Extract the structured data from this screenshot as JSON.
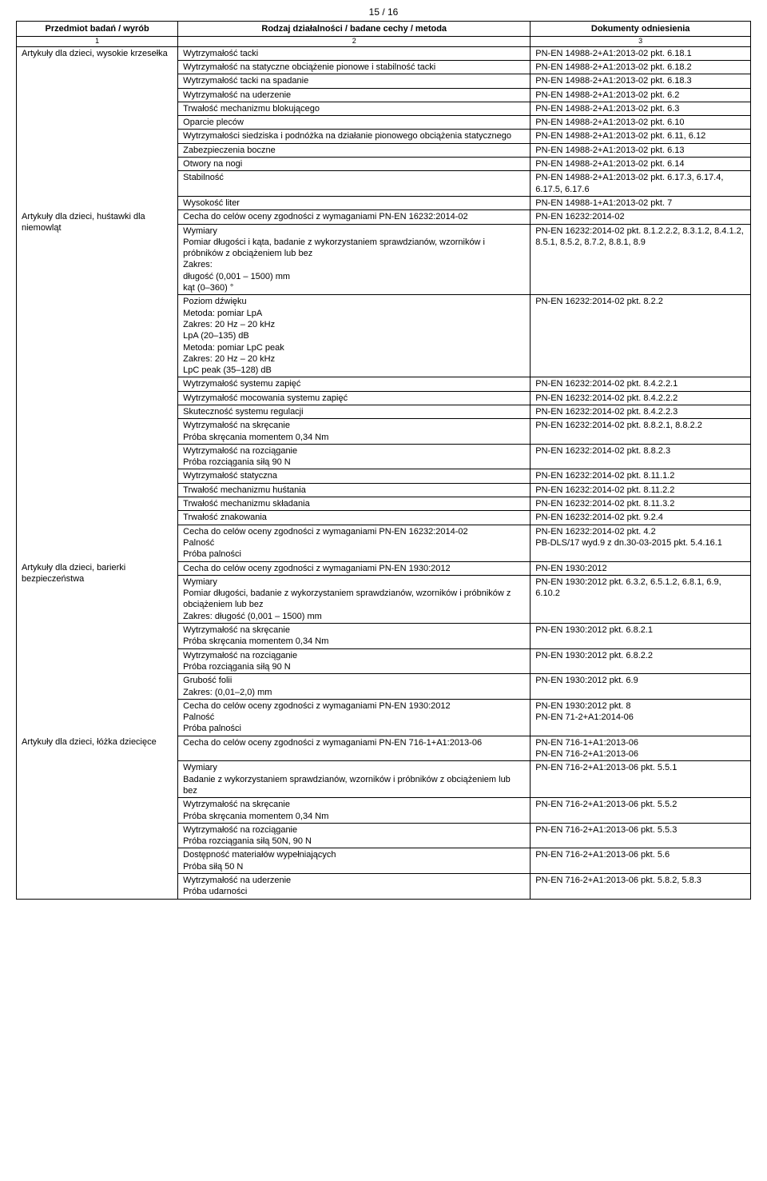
{
  "page_number": "15 / 16",
  "headers": {
    "col1": "Przedmiot badań / wyrób",
    "col2": "Rodzaj działalności / badane cechy / metoda",
    "col3": "Dokumenty odniesienia",
    "n1": "1",
    "n2": "2",
    "n3": "3"
  },
  "groups": [
    {
      "subject": "Artykuły dla dzieci, wysokie krzesełka",
      "rows": [
        {
          "m": "Wytrzymałość tacki",
          "d": "PN-EN 14988-2+A1:2013-02 pkt. 6.18.1"
        },
        {
          "m": "Wytrzymałość na statyczne obciążenie pionowe i stabilność tacki",
          "d": "PN-EN 14988-2+A1:2013-02 pkt. 6.18.2"
        },
        {
          "m": "Wytrzymałość tacki na spadanie",
          "d": "PN-EN 14988-2+A1:2013-02 pkt. 6.18.3"
        },
        {
          "m": "Wytrzymałość na uderzenie",
          "d": "PN-EN 14988-2+A1:2013-02 pkt. 6.2"
        },
        {
          "m": "Trwałość mechanizmu blokującego",
          "d": "PN-EN 14988-2+A1:2013-02 pkt. 6.3"
        },
        {
          "m": "Oparcie pleców",
          "d": "PN-EN 14988-2+A1:2013-02 pkt. 6.10"
        },
        {
          "m": "Wytrzymałości siedziska i podnóżka na działanie pionowego obciążenia statycznego",
          "d": "PN-EN 14988-2+A1:2013-02 pkt. 6.11, 6.12"
        },
        {
          "m": "Zabezpieczenia boczne",
          "d": "PN-EN 14988-2+A1:2013-02 pkt. 6.13"
        },
        {
          "m": "Otwory na nogi",
          "d": "PN-EN 14988-2+A1:2013-02 pkt. 6.14"
        },
        {
          "m": "Stabilność",
          "d": "PN-EN 14988-2+A1:2013-02 pkt. 6.17.3, 6.17.4, 6.17.5, 6.17.6"
        },
        {
          "m": "Wysokość liter",
          "d": "PN-EN 14988-1+A1:2013-02 pkt. 7"
        }
      ]
    },
    {
      "subject": "Artykuły dla dzieci, huśtawki dla niemowląt",
      "rows": [
        {
          "m": "Cecha do celów oceny zgodności z wymaganiami PN-EN 16232:2014-02",
          "d": "PN-EN 16232:2014-02"
        },
        {
          "m": "Wymiary\nPomiar długości i kąta, badanie z wykorzystaniem sprawdzianów, wzorników i próbników z obciążeniem lub bez\nZakres:\ndługość (0,001 – 1500) mm\nkąt (0–360) °",
          "d": "PN-EN 16232:2014-02 pkt. 8.1.2.2.2, 8.3.1.2, 8.4.1.2, 8.5.1, 8.5.2, 8.7.2, 8.8.1, 8.9"
        },
        {
          "m": "Poziom dźwięku\nMetoda: pomiar LpA\nZakres: 20 Hz – 20 kHz\nLpA       (20–135) dB\nMetoda: pomiar LpC peak\nZakres: 20 Hz – 20 kHz\nLpC peak (35–128) dB",
          "d": "PN-EN 16232:2014-02 pkt. 8.2.2"
        },
        {
          "m": "Wytrzymałość systemu zapięć",
          "d": "PN-EN 16232:2014-02 pkt. 8.4.2.2.1"
        },
        {
          "m": "Wytrzymałość mocowania systemu zapięć",
          "d": "PN-EN 16232:2014-02 pkt. 8.4.2.2.2"
        },
        {
          "m": "Skuteczność systemu regulacji",
          "d": "PN-EN 16232:2014-02 pkt. 8.4.2.2.3"
        },
        {
          "m": "Wytrzymałość na skręcanie\nPróba skręcania momentem 0,34 Nm",
          "d": "PN-EN 16232:2014-02 pkt. 8.8.2.1, 8.8.2.2"
        },
        {
          "m": "Wytrzymałość na rozciąganie\nPróba rozciągania siłą 90 N",
          "d": "PN-EN 16232:2014-02 pkt. 8.8.2.3"
        },
        {
          "m": "Wytrzymałość statyczna",
          "d": "PN-EN 16232:2014-02 pkt. 8.11.1.2"
        },
        {
          "m": "Trwałość mechanizmu huśtania",
          "d": "PN-EN 16232:2014-02 pkt. 8.11.2.2"
        },
        {
          "m": "Trwałość mechanizmu składania",
          "d": "PN-EN 16232:2014-02 pkt. 8.11.3.2"
        },
        {
          "m": "Trwałość znakowania",
          "d": "PN-EN 16232:2014-02 pkt. 9.2.4"
        },
        {
          "m": "Cecha do celów oceny zgodności z wymaganiami PN-EN 16232:2014-02\nPalność\nPróba palności",
          "d": "PN-EN 16232:2014-02 pkt. 4.2\nPB-DLS/17 wyd.9 z dn.30-03-2015 pkt. 5.4.16.1"
        }
      ]
    },
    {
      "subject": "Artykuły dla dzieci, barierki bezpieczeństwa",
      "rows": [
        {
          "m": "Cecha do celów oceny zgodności z wymaganiami PN-EN 1930:2012",
          "d": "PN-EN 1930:2012"
        },
        {
          "m": "Wymiary\nPomiar długości, badanie z wykorzystaniem sprawdzianów, wzorników i próbników z obciążeniem lub bez\nZakres: długość (0,001 – 1500) mm",
          "d": "PN-EN 1930:2012 pkt. 6.3.2, 6.5.1.2, 6.8.1, 6.9, 6.10.2"
        },
        {
          "m": "Wytrzymałość na skręcanie\nPróba skręcania momentem 0,34 Nm",
          "d": "PN-EN 1930:2012 pkt. 6.8.2.1"
        },
        {
          "m": "Wytrzymałość na rozciąganie\nPróba rozciągania siłą 90 N",
          "d": "PN-EN 1930:2012 pkt. 6.8.2.2"
        },
        {
          "m": "Grubość folii\nZakres: (0,01–2,0) mm",
          "d": "PN-EN 1930:2012 pkt. 6.9"
        },
        {
          "m": "Cecha do celów oceny zgodności z wymaganiami PN-EN 1930:2012\nPalność\nPróba palności",
          "d": "PN-EN 1930:2012 pkt. 8\nPN-EN 71-2+A1:2014-06"
        }
      ]
    },
    {
      "subject": "Artykuły dla dzieci, łóżka dziecięce",
      "rows": [
        {
          "m": "Cecha do celów oceny zgodności z wymaganiami PN-EN 716-1+A1:2013-06",
          "d": "PN-EN 716-1+A1:2013-06\nPN-EN 716-2+A1:2013-06"
        },
        {
          "m": "Wymiary\nBadanie z wykorzystaniem sprawdzianów, wzorników i próbników z obciążeniem lub bez",
          "d": "PN-EN 716-2+A1:2013-06 pkt. 5.5.1"
        },
        {
          "m": "Wytrzymałość na skręcanie\nPróba skręcania momentem 0,34 Nm",
          "d": "PN-EN 716-2+A1:2013-06 pkt. 5.5.2"
        },
        {
          "m": "Wytrzymałość na rozciąganie\nPróba rozciągania siłą 50N, 90 N",
          "d": "PN-EN 716-2+A1:2013-06 pkt. 5.5.3"
        },
        {
          "m": "Dostępność materiałów wypełniających\nPróba siłą 50 N",
          "d": "PN-EN 716-2+A1:2013-06 pkt. 5.6"
        },
        {
          "m": "Wytrzymałość na uderzenie\nPróba udarności",
          "d": "PN-EN 716-2+A1:2013-06 pkt. 5.8.2, 5.8.3"
        }
      ]
    }
  ]
}
